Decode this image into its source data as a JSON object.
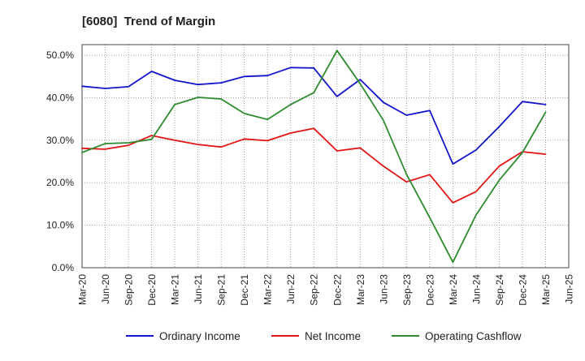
{
  "chart_data": {
    "type": "line",
    "title": "[6080]  Trend of Margin",
    "categories": [
      "Mar-20",
      "Jun-20",
      "Sep-20",
      "Dec-20",
      "Mar-21",
      "Jun-21",
      "Sep-21",
      "Dec-21",
      "Mar-22",
      "Jun-22",
      "Sep-22",
      "Dec-22",
      "Mar-23",
      "Jun-23",
      "Sep-23",
      "Dec-23",
      "Mar-24",
      "Jun-24",
      "Sep-24",
      "Dec-24",
      "Mar-25",
      "Jun-25"
    ],
    "series": [
      {
        "name": "Ordinary Income",
        "color": "#1414cc",
        "values": [
          42.7,
          42.2,
          42.6,
          46.2,
          44.1,
          43.1,
          43.5,
          45.0,
          45.2,
          47.1,
          47.0,
          40.3,
          44.3,
          38.9,
          35.9,
          37.0,
          24.4,
          27.7,
          33.2,
          39.1,
          38.4,
          null
        ]
      },
      {
        "name": "Net Income",
        "color": "#e31414",
        "values": [
          28.1,
          27.9,
          28.8,
          31.1,
          30.0,
          29.0,
          28.4,
          30.3,
          29.9,
          31.7,
          32.8,
          27.5,
          28.2,
          23.9,
          20.2,
          21.9,
          15.3,
          17.9,
          23.9,
          27.3,
          26.7,
          null
        ]
      },
      {
        "name": "Operating Cashflow",
        "color": "#2e8b2e",
        "values": [
          27.1,
          29.2,
          29.4,
          30.2,
          38.4,
          40.1,
          39.7,
          36.3,
          34.9,
          38.4,
          41.2,
          51.1,
          43.3,
          34.7,
          22.0,
          11.8,
          1.3,
          12.4,
          20.6,
          27.1,
          36.6,
          null
        ]
      }
    ],
    "ylim": [
      0,
      52.5
    ],
    "yticks": [
      0,
      10,
      20,
      30,
      40,
      50
    ],
    "ytick_labels": [
      "0.0%",
      "10.0%",
      "20.0%",
      "30.0%",
      "40.0%",
      "50.0%"
    ],
    "grid": true,
    "legend": "bottom"
  }
}
